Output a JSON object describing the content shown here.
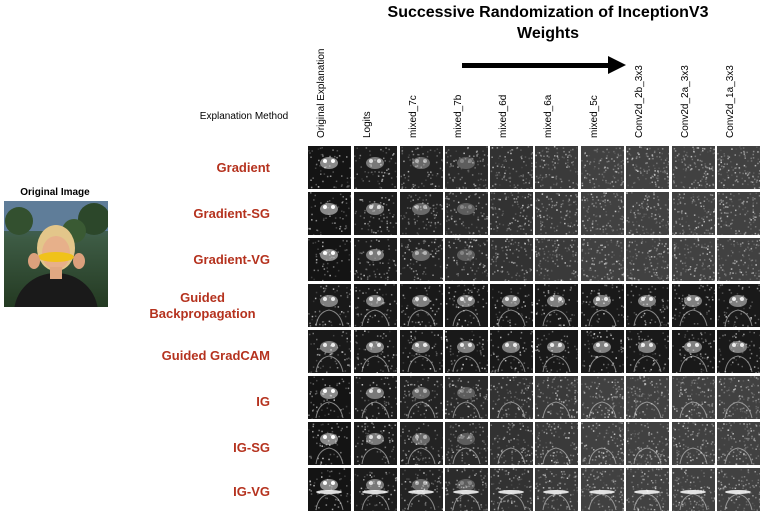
{
  "title": "Successive Randomization of InceptionV3 Weights",
  "explanation_header": "Explanation Method",
  "original_image_label": "Original Image",
  "columns": [
    "Original Explanation",
    "Logits",
    "mixed_7c",
    "mixed_7b",
    "mixed_6d",
    "mixed_6a",
    "mixed_5c",
    "Conv2d_2b_3x3",
    "Conv2d_2a_3x3",
    "Conv2d_1a_3x3"
  ],
  "rows": [
    "Gradient",
    "Gradient-SG",
    "Gradient-VG",
    "Guided Backpropagation",
    "Guided GradCAM",
    "IG",
    "IG-SG",
    "IG-VG"
  ],
  "colors": {
    "row_label": "#b5321e",
    "arrow": "#000000"
  },
  "icons": {
    "arrow": "right-arrow-icon"
  }
}
